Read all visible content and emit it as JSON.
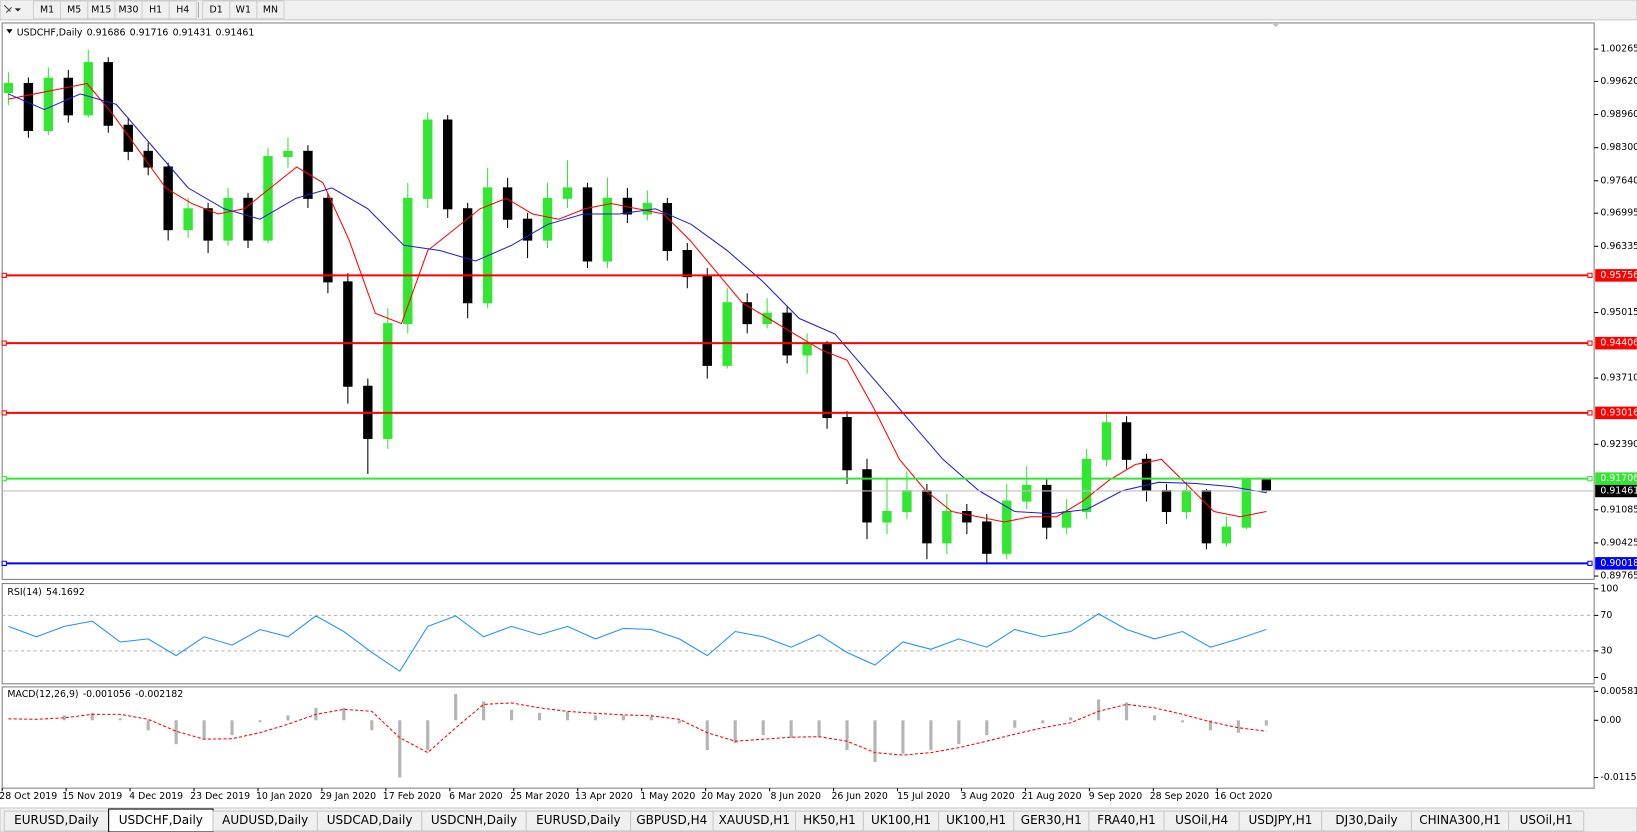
{
  "toolbar": {
    "buttons": [
      "M1",
      "M5",
      "M15",
      "M30",
      "H1",
      "H4",
      "D1",
      "W1",
      "MN"
    ]
  },
  "chart_data": [
    {
      "type": "candlestick",
      "title": "USDCHF,Daily",
      "open": [
        0.994,
        0.99579,
        0.98643,
        0.99683,
        0.98955,
        0.99995,
        0.98747,
        0.98227,
        0.97915,
        0.96667,
        0.97083,
        0.96459,
        0.97291,
        0.96459,
        0.98123,
        0.98227,
        0.97291,
        0.95627,
        0.93547,
        0.92507,
        0.94795,
        0.97291,
        0.98851,
        0.97083,
        0.95211,
        0.97499,
        0.96875,
        0.96459,
        0.97291,
        0.97499,
        0.96043,
        0.97291,
        0.96979,
        0.97187,
        0.96251,
        0.95731,
        0.93963,
        0.95211,
        0.94795,
        0.95003,
        0.94171,
        0.94379,
        0.92923,
        0.91883,
        0.90843,
        0.91051,
        0.91467,
        0.90427,
        0.91051,
        0.90843,
        0.90219,
        0.91259,
        0.91571,
        0.90739,
        0.91051,
        0.92091,
        0.92819,
        0.92091,
        0.91467,
        0.91051,
        0.91467,
        0.90427,
        0.90739,
        0.91686
      ],
      "high": [
        0.998,
        0.997,
        0.999,
        0.9985,
        1.0025,
        1.001,
        0.989,
        0.984,
        0.98,
        0.973,
        0.972,
        0.975,
        0.974,
        0.983,
        0.985,
        0.9835,
        0.974,
        0.958,
        0.937,
        0.951,
        0.976,
        0.99,
        0.9895,
        0.972,
        0.979,
        0.977,
        0.97,
        0.976,
        0.9805,
        0.976,
        0.977,
        0.975,
        0.9745,
        0.973,
        0.964,
        0.959,
        0.955,
        0.954,
        0.953,
        0.9515,
        0.946,
        0.9445,
        0.9305,
        0.921,
        0.917,
        0.9185,
        0.916,
        0.914,
        0.912,
        0.91,
        0.916,
        0.9195,
        0.917,
        0.913,
        0.923,
        0.93,
        0.9295,
        0.922,
        0.916,
        0.9165,
        0.915,
        0.9095,
        0.917,
        0.91716
      ],
      "low": [
        0.9915,
        0.985,
        0.9855,
        0.988,
        0.989,
        0.986,
        0.9805,
        0.9775,
        0.9645,
        0.965,
        0.962,
        0.9635,
        0.963,
        0.964,
        0.979,
        0.971,
        0.954,
        0.932,
        0.918,
        0.923,
        0.946,
        0.971,
        0.969,
        0.949,
        0.951,
        0.967,
        0.961,
        0.963,
        0.971,
        0.959,
        0.959,
        0.968,
        0.9685,
        0.9605,
        0.955,
        0.937,
        0.939,
        0.946,
        0.947,
        0.94,
        0.938,
        0.927,
        0.916,
        0.905,
        0.906,
        0.909,
        0.901,
        0.902,
        0.906,
        0.9,
        0.901,
        0.911,
        0.905,
        0.906,
        0.909,
        0.9195,
        0.919,
        0.9125,
        0.908,
        0.909,
        0.903,
        0.9035,
        0.907,
        0.91431
      ],
      "close": [
        0.99579,
        0.98643,
        0.99683,
        0.98955,
        0.99995,
        0.98747,
        0.98227,
        0.97915,
        0.96667,
        0.97083,
        0.96459,
        0.97291,
        0.96459,
        0.98123,
        0.98227,
        0.97291,
        0.95627,
        0.93547,
        0.92507,
        0.94795,
        0.97291,
        0.98851,
        0.97083,
        0.95211,
        0.97499,
        0.96875,
        0.96459,
        0.97291,
        0.97499,
        0.96043,
        0.97291,
        0.96979,
        0.97187,
        0.96251,
        0.95731,
        0.93963,
        0.95211,
        0.94795,
        0.95003,
        0.94171,
        0.94379,
        0.92923,
        0.91883,
        0.90843,
        0.91051,
        0.91467,
        0.90427,
        0.91051,
        0.90843,
        0.90219,
        0.91259,
        0.91571,
        0.90739,
        0.91051,
        0.92091,
        0.92819,
        0.92091,
        0.91467,
        0.91051,
        0.91467,
        0.90427,
        0.90739,
        0.91686,
        0.91461
      ],
      "up_color": "#33e633",
      "down_color": "#000000",
      "ma_lines": [
        {
          "color": "#ff0000",
          "values": [
            0.99267,
            0.99371,
            0.99475,
            0.99579,
            0.98955,
            0.98227,
            0.97499,
            0.97187,
            0.96979,
            0.97083,
            0.97499,
            0.97915,
            0.97603,
            0.96459,
            0.94999,
            0.94795,
            0.96251,
            0.96667,
            0.97083,
            0.97291,
            0.96979,
            0.96875,
            0.97083,
            0.97187,
            0.97083,
            0.96979,
            0.96459,
            0.95835,
            0.95211,
            0.94899,
            0.94587,
            0.94275,
            0.94067,
            0.93131,
            0.92091,
            0.91467,
            0.91051,
            0.90947,
            0.90843,
            0.90947,
            0.90947,
            0.91259,
            0.91675,
            0.91987,
            0.92091,
            0.91571,
            0.91051,
            0.90947,
            0.91051
          ]
        },
        {
          "color": "#1f1fd6",
          "values": [
            0.99371,
            0.99059,
            0.99371,
            0.99163,
            0.98331,
            0.97499,
            0.97083,
            0.96875,
            0.97291,
            0.97499,
            0.97083,
            0.96355,
            0.96251,
            0.96043,
            0.96355,
            0.96771,
            0.96979,
            0.96979,
            0.97083,
            0.96771,
            0.96251,
            0.95627,
            0.94899,
            0.94587,
            0.93755,
            0.92923,
            0.92091,
            0.91467,
            0.91051,
            0.91009,
            0.91092,
            0.91467,
            0.91633,
            0.91612,
            0.9155,
            0.91425
          ]
        }
      ],
      "hlines": [
        {
          "value": 0.95756,
          "color": "#ff0000"
        },
        {
          "value": 0.94406,
          "color": "#ff0000"
        },
        {
          "value": 0.93016,
          "color": "#ff0000"
        },
        {
          "value": 0.91706,
          "color": "#33e633"
        },
        {
          "value": 0.90018,
          "color": "#0000ff"
        }
      ],
      "ylim": [
        0.89699,
        1.00785
      ],
      "yticks": [
        1.00265,
        {
          "value": 0.9962,
          "label": "0.99620"
        },
        {
          "value": 0.9896,
          "label": "0.98960"
        },
        {
          "value": 0.983,
          "label": "0.98300"
        },
        {
          "value": 0.9764,
          "label": "0.97640"
        },
        0.96995,
        0.96335,
        0.95015,
        {
          "value": 0.9371,
          "label": "0.93710"
        },
        {
          "value": 0.9239,
          "label": "0.92390"
        },
        0.91085,
        0.90425,
        0.89765
      ],
      "dates": [
        "28 Oct 2019",
        "15 Nov 2019",
        "4 Dec 2019",
        "23 Dec 2019",
        "10 Jan 2020",
        "29 Jan 2020",
        "17 Feb 2020",
        "6 Mar 2020",
        "25 Mar 2020",
        "13 Apr 2020",
        "1 May 2020",
        "20 May 2020",
        "8 Jun 2020",
        "26 Jun 2020",
        "15 Jul 2020",
        "3 Aug 2020",
        "21 Aug 2020",
        "9 Sep 2020",
        "28 Sep 2020",
        "16 Oct 2020"
      ]
    },
    {
      "type": "line",
      "title": "RSI(14)",
      "color": "#1e90ff",
      "values": [
        57.6,
        45.9,
        57.6,
        63.5,
        40,
        43.5,
        24.7,
        45.9,
        36.5,
        54.1,
        45.9,
        69.4,
        51.8,
        28.2,
        7.1,
        57.6,
        69.4,
        45.9,
        57.6,
        48.2,
        57.6,
        43.5,
        55.3,
        54.1,
        43.5,
        24.7,
        51.8,
        45.9,
        34.1,
        48.2,
        28.2,
        14.1,
        40,
        31.8,
        43.5,
        34.1,
        54.1,
        45.9,
        51.8,
        71.8,
        54.1,
        43.5,
        51.8,
        34.1,
        43.5,
        54.1692
      ],
      "ylim": [
        0,
        100
      ],
      "yticks": [
        100,
        70,
        30,
        0
      ],
      "levels": [
        70,
        30
      ]
    },
    {
      "type": "bar",
      "title": "MACD(12,26,9)",
      "color": "#b4b4b4",
      "signal_color": "#ff0000",
      "values": [
        0,
        0,
        0.001,
        0.0015,
        0.0004,
        -0.002,
        -0.0048,
        -0.0038,
        -0.003,
        -0.0004,
        0.001,
        0.0025,
        0.0025,
        -0.002,
        -0.0115,
        -0.006,
        0.0053,
        0.0038,
        0.0021,
        0.0015,
        0.0017,
        0.001,
        0.001,
        0.0008,
        -0.0006,
        -0.006,
        -0.0046,
        -0.003,
        -0.0035,
        -0.0033,
        -0.006,
        -0.0084,
        -0.0067,
        -0.006,
        -0.0048,
        -0.003,
        -0.0015,
        -0.0006,
        0.0006,
        0.0042,
        0.0036,
        0.001,
        -0.0004,
        -0.002,
        -0.0025,
        -0.001056
      ],
      "signal": [
        0.0003,
        0.0002,
        0.0005,
        0.0012,
        0.0012,
        0.0002,
        -0.0022,
        -0.0038,
        -0.0037,
        -0.0025,
        -0.0008,
        0.0012,
        0.0022,
        0.0018,
        -0.0035,
        -0.0065,
        -0.0015,
        0.0032,
        0.0035,
        0.0025,
        0.0018,
        0.0014,
        0.0011,
        0.0009,
        0.0002,
        -0.0025,
        -0.0042,
        -0.0038,
        -0.0034,
        -0.0033,
        -0.0042,
        -0.0065,
        -0.007,
        -0.0065,
        -0.0055,
        -0.0042,
        -0.0028,
        -0.0015,
        -0.0005,
        0.0018,
        0.0032,
        0.0025,
        0.0012,
        -0.0003,
        -0.0015,
        -0.002182
      ],
      "ylim": [
        -0.01365,
        0.00672
      ],
      "yticks": [
        0.005818,
        {
          "value": 0,
          "label": "0.00"
        },
        -0.011514
      ]
    }
  ],
  "tabs": [
    "EURUSD,Daily",
    "USDCHF,Daily",
    "AUDUSD,Daily",
    "USDCAD,Daily",
    "USDCNH,Daily",
    "EURUSD,Daily",
    "GBPUSD,H4",
    "XAUUSD,H1",
    "HK50,H1",
    "UK100,H1",
    "UK100,H1",
    "GER30,H1",
    "FRA40,H1",
    "USOil,H4",
    "USDJPY,H1",
    "DJ30,Daily",
    "CHINA300,H1",
    "USOil,H1"
  ],
  "active_tab": 1
}
